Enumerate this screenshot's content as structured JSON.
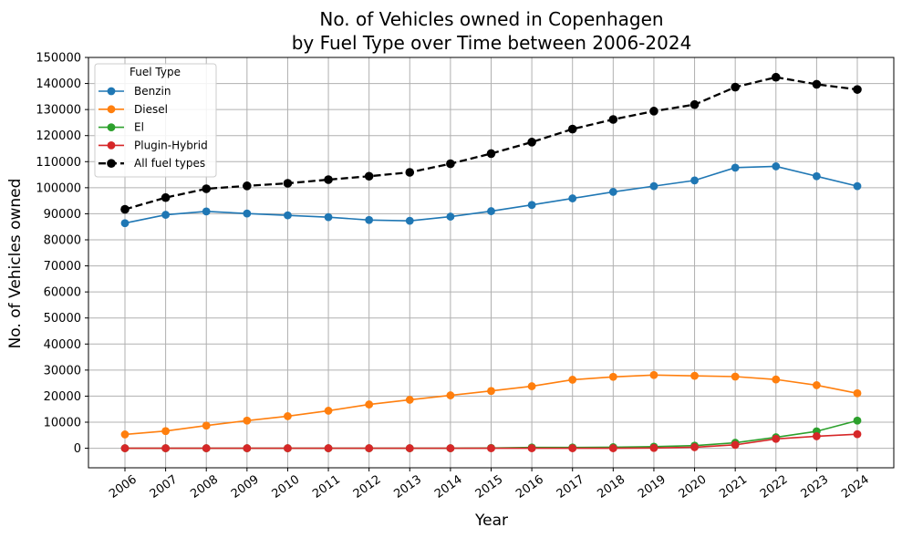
{
  "chart_data": {
    "type": "line",
    "title_line1": "No. of Vehicles owned in Copenhagen",
    "title_line2": "by Fuel Type over Time between 2006-2024",
    "xlabel": "Year",
    "ylabel": "No. of Vehicles owned",
    "ylim": [
      -7500,
      150000
    ],
    "yticks": [
      0,
      10000,
      20000,
      30000,
      40000,
      50000,
      60000,
      70000,
      80000,
      90000,
      100000,
      110000,
      120000,
      130000,
      140000,
      150000
    ],
    "ytick_labels": [
      "0",
      "10000",
      "20000",
      "30000",
      "40000",
      "50000",
      "60000",
      "70000",
      "80000",
      "90000",
      "100000",
      "110000",
      "120000",
      "130000",
      "140000",
      "150000"
    ],
    "x": [
      "2006",
      "2007",
      "2008",
      "2009",
      "2010",
      "2011",
      "2012",
      "2013",
      "2014",
      "2015",
      "2016",
      "2017",
      "2018",
      "2019",
      "2020",
      "2021",
      "2022",
      "2023",
      "2024"
    ],
    "grid": true,
    "legend": {
      "title": "Fuel Type",
      "placement": "upper-left"
    },
    "series": [
      {
        "name": "Benzin",
        "color": "#1f77b4",
        "style": "solid",
        "values": [
          86400,
          89600,
          90900,
          90100,
          89400,
          88700,
          87600,
          87300,
          88900,
          91000,
          93400,
          95900,
          98400,
          100600,
          102800,
          107700,
          108200,
          104400,
          100600
        ]
      },
      {
        "name": "Diesel",
        "color": "#ff7f0e",
        "style": "solid",
        "values": [
          5300,
          6600,
          8700,
          10600,
          12300,
          14400,
          16800,
          18600,
          20300,
          22000,
          23800,
          26300,
          27400,
          28100,
          27800,
          27500,
          26400,
          24200,
          21100
        ]
      },
      {
        "name": "El",
        "color": "#2ca02c",
        "style": "solid",
        "values": [
          0,
          0,
          0,
          0,
          0,
          0,
          0,
          0,
          0,
          100,
          300,
          300,
          400,
          600,
          1000,
          2100,
          4200,
          6500,
          10600
        ]
      },
      {
        "name": "Plugin-Hybrid",
        "color": "#d62728",
        "style": "solid",
        "values": [
          0,
          0,
          0,
          0,
          0,
          0,
          0,
          0,
          0,
          0,
          0,
          0,
          0,
          100,
          400,
          1300,
          3600,
          4600,
          5400
        ]
      },
      {
        "name": "All fuel types",
        "color": "#000000",
        "style": "dashed",
        "values": [
          91700,
          96200,
          99600,
          100700,
          101700,
          103100,
          104400,
          105900,
          109200,
          113100,
          117500,
          122500,
          126200,
          129400,
          131900,
          138600,
          142400,
          139700,
          137700
        ]
      }
    ]
  }
}
